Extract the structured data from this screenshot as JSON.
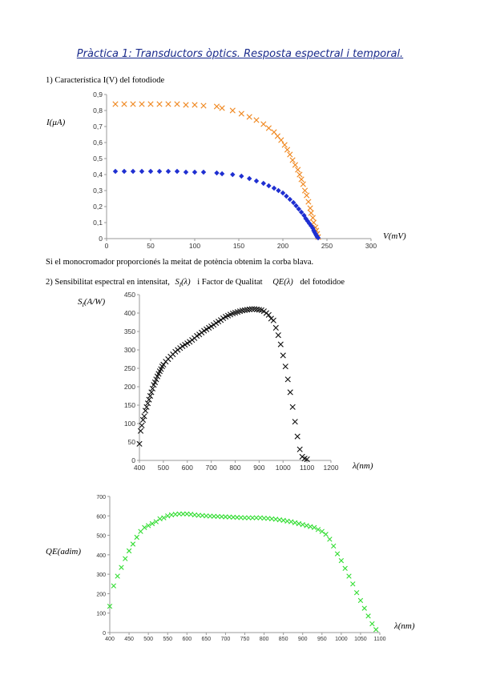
{
  "page": {
    "title": "Pràctica 1: Transductors òptics. Resposta espectral i temporal.",
    "section1": "1) Característica I(V) del fotodiode",
    "note": "Si el monocromador proporcionés la meitat de potència obtenim la corba blava.",
    "section2_a": "2) Sensibilitat espectral en intensitat,",
    "section2_sym1": "S",
    "section2_sym1_sub": "I",
    "section2_sym1_arg": "(λ)",
    "section2_b": "i Factor de Qualitat",
    "section2_sym2": "QE(λ)",
    "section2_c": "del fotodidoe"
  },
  "chart_data": [
    {
      "type": "scatter",
      "xlabel": "V(mV)",
      "ylabel": "I(μA)",
      "xlim": [
        0,
        300
      ],
      "ylim": [
        0,
        0.9
      ],
      "xticks": [
        "0",
        "50",
        "100",
        "150",
        "200",
        "250",
        "300"
      ],
      "yticks": [
        "0",
        "0,1",
        "0,2",
        "0,3",
        "0,4",
        "0,5",
        "0,6",
        "0,7",
        "0,8",
        "0,9"
      ],
      "grid": false,
      "series": [
        {
          "color": "#f08a24",
          "marker": "x",
          "x": [
            10,
            20,
            30,
            40,
            50,
            60,
            70,
            80,
            90,
            100,
            110,
            125,
            131,
            143,
            153,
            162,
            170,
            178,
            184,
            190,
            194,
            198,
            202,
            205,
            208,
            211,
            214,
            217,
            219,
            221,
            223,
            225,
            227,
            229,
            231,
            232,
            234,
            235,
            237,
            238,
            239,
            240
          ],
          "y": [
            0.84,
            0.84,
            0.84,
            0.84,
            0.84,
            0.84,
            0.84,
            0.84,
            0.835,
            0.835,
            0.83,
            0.825,
            0.815,
            0.8,
            0.78,
            0.76,
            0.74,
            0.715,
            0.69,
            0.665,
            0.64,
            0.615,
            0.585,
            0.555,
            0.525,
            0.49,
            0.46,
            0.43,
            0.4,
            0.37,
            0.34,
            0.3,
            0.27,
            0.23,
            0.19,
            0.16,
            0.13,
            0.1,
            0.07,
            0.05,
            0.03,
            0.01
          ]
        },
        {
          "color": "#1f2fd1",
          "marker": "diamond",
          "x": [
            10,
            20,
            30,
            40,
            50,
            60,
            70,
            80,
            90,
            100,
            110,
            125,
            131,
            143,
            153,
            162,
            170,
            178,
            184,
            190,
            195,
            200,
            204,
            208,
            212,
            215,
            218,
            221,
            224,
            226,
            228,
            230,
            232,
            234,
            235,
            236,
            237,
            238,
            239,
            240
          ],
          "y": [
            0.42,
            0.42,
            0.42,
            0.42,
            0.42,
            0.42,
            0.42,
            0.42,
            0.415,
            0.415,
            0.415,
            0.41,
            0.405,
            0.4,
            0.39,
            0.375,
            0.36,
            0.345,
            0.33,
            0.315,
            0.3,
            0.285,
            0.265,
            0.245,
            0.225,
            0.205,
            0.185,
            0.165,
            0.145,
            0.125,
            0.11,
            0.095,
            0.08,
            0.065,
            0.05,
            0.04,
            0.03,
            0.02,
            0.01,
            0.005
          ]
        }
      ]
    },
    {
      "type": "scatter",
      "xlabel": "λ(nm)",
      "ylabel": "S_I(A/W)",
      "ylabel_main": "S",
      "ylabel_sub": "I",
      "ylabel_rest": "(A/W)",
      "xlim": [
        400,
        1200
      ],
      "ylim": [
        0,
        450
      ],
      "xticks": [
        "400",
        "500",
        "600",
        "700",
        "800",
        "900",
        "1000",
        "1100",
        "1200"
      ],
      "yticks": [
        "0",
        "50",
        "100",
        "150",
        "200",
        "250",
        "300",
        "350",
        "400",
        "450"
      ],
      "grid": false,
      "series": [
        {
          "color": "#111111",
          "marker": "x",
          "x": [
            400,
            405,
            410,
            415,
            420,
            425,
            430,
            435,
            440,
            445,
            450,
            455,
            460,
            465,
            470,
            475,
            480,
            485,
            490,
            495,
            500,
            510,
            520,
            530,
            540,
            550,
            560,
            570,
            580,
            590,
            600,
            610,
            620,
            630,
            640,
            650,
            660,
            670,
            680,
            690,
            700,
            710,
            720,
            730,
            740,
            750,
            760,
            770,
            780,
            790,
            800,
            810,
            820,
            830,
            840,
            850,
            860,
            870,
            880,
            890,
            900,
            910,
            920,
            930,
            940,
            950,
            960,
            970,
            980,
            990,
            1000,
            1010,
            1020,
            1030,
            1040,
            1050,
            1060,
            1070,
            1080,
            1090,
            1100
          ],
          "y": [
            45,
            80,
            95,
            110,
            120,
            135,
            145,
            155,
            165,
            175,
            185,
            195,
            205,
            212,
            220,
            228,
            235,
            242,
            248,
            255,
            260,
            268,
            275,
            282,
            288,
            295,
            300,
            305,
            310,
            314,
            318,
            322,
            327,
            332,
            338,
            342,
            347,
            352,
            356,
            360,
            364,
            368,
            373,
            377,
            381,
            386,
            390,
            393,
            396,
            399,
            401,
            403,
            405,
            407,
            408,
            409,
            410,
            411,
            411,
            410,
            409,
            408,
            405,
            400,
            395,
            385,
            380,
            360,
            340,
            315,
            285,
            255,
            220,
            185,
            145,
            105,
            65,
            30,
            10,
            5,
            3
          ]
        }
      ]
    },
    {
      "type": "scatter",
      "xlabel": "λ(nm)",
      "ylabel": "QE(adim)",
      "xlim": [
        400,
        1100
      ],
      "ylim": [
        0,
        700
      ],
      "xticks": [
        "400",
        "450",
        "500",
        "550",
        "600",
        "650",
        "700",
        "750",
        "800",
        "850",
        "900",
        "950",
        "1000",
        "1050",
        "1100"
      ],
      "yticks": [
        "0",
        "100",
        "200",
        "300",
        "400",
        "500",
        "600",
        "700"
      ],
      "grid": false,
      "series": [
        {
          "color": "#33dd33",
          "marker": "x",
          "x": [
            400,
            410,
            420,
            430,
            440,
            450,
            460,
            470,
            480,
            490,
            500,
            510,
            520,
            530,
            540,
            550,
            560,
            570,
            580,
            590,
            600,
            610,
            620,
            630,
            640,
            650,
            660,
            670,
            680,
            690,
            700,
            710,
            720,
            730,
            740,
            750,
            760,
            770,
            780,
            790,
            800,
            810,
            820,
            830,
            840,
            850,
            860,
            870,
            880,
            890,
            900,
            910,
            920,
            930,
            940,
            950,
            960,
            970,
            980,
            990,
            1000,
            1010,
            1020,
            1030,
            1040,
            1050,
            1060,
            1070,
            1080,
            1090
          ],
          "y": [
            135,
            240,
            290,
            335,
            380,
            420,
            455,
            490,
            520,
            540,
            550,
            560,
            570,
            585,
            590,
            600,
            605,
            608,
            610,
            610,
            610,
            608,
            605,
            603,
            602,
            600,
            599,
            598,
            597,
            596,
            595,
            594,
            593,
            592,
            591,
            590,
            590,
            590,
            590,
            590,
            588,
            587,
            585,
            583,
            580,
            577,
            573,
            570,
            565,
            560,
            555,
            550,
            545,
            540,
            530,
            520,
            505,
            480,
            445,
            405,
            370,
            330,
            290,
            250,
            205,
            165,
            125,
            85,
            45,
            15
          ]
        }
      ]
    }
  ]
}
